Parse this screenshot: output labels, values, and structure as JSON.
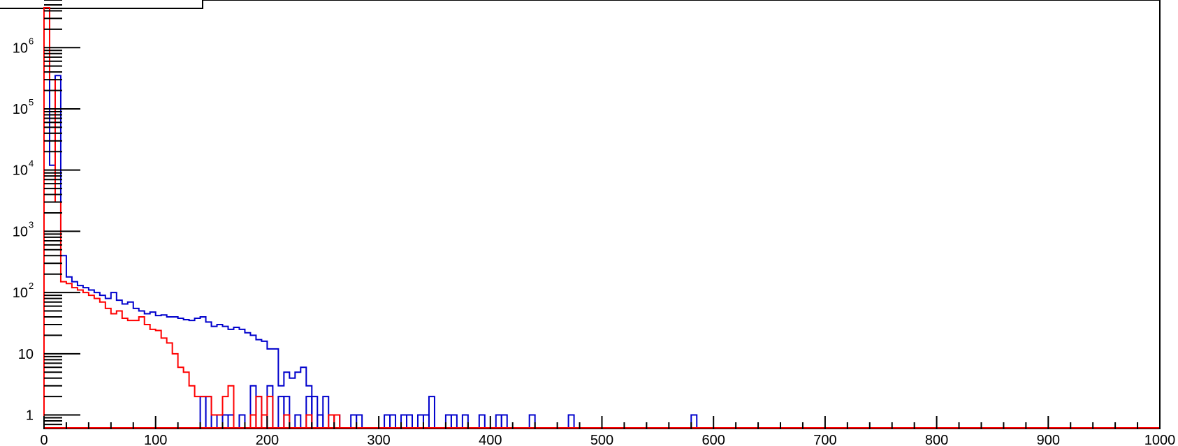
{
  "chart_data": {
    "type": "line",
    "title": "",
    "xlabel": "",
    "ylabel": "",
    "xlim": [
      0,
      1000
    ],
    "ylim_log": [
      0.6,
      6000000
    ],
    "y_scale": "log",
    "grid": false,
    "legend": "top-left (box, partially visible, no text)",
    "x_tick_labels": [
      "0",
      "100",
      "200",
      "300",
      "400",
      "500",
      "600",
      "700",
      "800",
      "900",
      "1000"
    ],
    "x_ticks": [
      0,
      100,
      200,
      300,
      400,
      500,
      600,
      700,
      800,
      900,
      1000
    ],
    "y_tick_labels": [
      {
        "value": 1,
        "base": "1",
        "exp": ""
      },
      {
        "value": 10,
        "base": "10",
        "exp": ""
      },
      {
        "value": 100,
        "base": "10",
        "exp": "2"
      },
      {
        "value": 1000,
        "base": "10",
        "exp": "3"
      },
      {
        "value": 10000,
        "base": "10",
        "exp": "4"
      },
      {
        "value": 100000,
        "base": "10",
        "exp": "5"
      },
      {
        "value": 1000000,
        "base": "10",
        "exp": "6"
      }
    ],
    "bin_width": 5,
    "series": [
      {
        "color": "#0000cc",
        "values": [
          4000000,
          12000,
          350000,
          3000,
          400,
          180,
          150,
          120,
          110,
          100,
          100,
          90,
          100,
          80,
          100,
          70,
          60,
          70,
          60,
          50,
          50,
          45,
          40,
          45,
          40,
          40,
          35,
          35,
          40,
          30,
          30,
          28,
          30,
          25,
          25,
          28,
          25,
          22,
          18,
          17,
          16,
          12,
          12,
          6,
          3,
          4,
          3,
          4,
          3,
          0,
          1,
          0,
          0,
          0,
          0,
          0,
          0,
          0,
          0,
          0,
          0,
          0,
          0,
          0,
          0,
          0,
          0,
          0,
          0,
          0,
          0,
          0,
          0,
          0,
          0,
          0,
          0,
          0,
          0,
          0,
          0,
          0,
          0,
          0,
          0,
          0,
          0,
          0,
          0,
          0,
          0,
          0,
          0,
          0,
          0,
          0,
          0,
          0,
          0,
          0,
          0,
          0,
          0,
          0,
          0,
          0,
          0,
          0,
          0,
          0,
          0,
          0,
          0,
          0,
          0,
          0,
          0,
          0,
          0,
          0,
          0,
          0,
          0,
          0,
          0,
          0,
          0,
          0,
          0,
          0,
          0,
          0,
          0,
          0,
          0,
          0,
          0,
          0,
          0,
          0,
          0,
          0,
          0,
          0,
          0,
          0,
          0,
          0,
          0,
          0,
          0,
          0,
          0,
          0,
          0,
          0,
          0,
          0,
          0,
          0,
          0,
          0,
          0,
          0,
          0,
          0,
          0,
          0,
          0,
          0,
          0,
          0,
          0,
          0,
          0,
          0,
          0,
          0,
          0,
          0,
          0,
          0,
          0,
          0,
          0,
          0,
          0,
          0,
          0,
          0,
          0,
          0,
          0,
          0,
          0,
          0,
          0,
          0,
          0,
          0
        ],
        "overrides": [
          {
            "x": 0,
            "y": 4000000
          },
          {
            "x": 5,
            "y": 12000
          },
          {
            "x": 10,
            "y": 350000
          },
          {
            "x": 15,
            "y": 400
          },
          {
            "x": 20,
            "y": 180
          },
          {
            "x": 25,
            "y": 150
          },
          {
            "x": 30,
            "y": 130
          },
          {
            "x": 35,
            "y": 120
          },
          {
            "x": 40,
            "y": 110
          },
          {
            "x": 45,
            "y": 100
          },
          {
            "x": 50,
            "y": 90
          },
          {
            "x": 55,
            "y": 80
          },
          {
            "x": 60,
            "y": 100
          },
          {
            "x": 65,
            "y": 75
          },
          {
            "x": 70,
            "y": 65
          },
          {
            "x": 75,
            "y": 70
          },
          {
            "x": 80,
            "y": 55
          },
          {
            "x": 85,
            "y": 50
          },
          {
            "x": 90,
            "y": 45
          },
          {
            "x": 95,
            "y": 48
          },
          {
            "x": 100,
            "y": 42
          },
          {
            "x": 105,
            "y": 43
          },
          {
            "x": 110,
            "y": 40
          },
          {
            "x": 115,
            "y": 40
          },
          {
            "x": 120,
            "y": 38
          },
          {
            "x": 125,
            "y": 36
          },
          {
            "x": 130,
            "y": 35
          },
          {
            "x": 135,
            "y": 38
          },
          {
            "x": 140,
            "y": 40
          },
          {
            "x": 145,
            "y": 33
          },
          {
            "x": 150,
            "y": 28
          },
          {
            "x": 155,
            "y": 30
          },
          {
            "x": 160,
            "y": 28
          },
          {
            "x": 165,
            "y": 25
          },
          {
            "x": 170,
            "y": 27
          },
          {
            "x": 175,
            "y": 25
          },
          {
            "x": 180,
            "y": 22
          },
          {
            "x": 185,
            "y": 20
          },
          {
            "x": 190,
            "y": 17
          },
          {
            "x": 195,
            "y": 16
          },
          {
            "x": 200,
            "y": 12
          },
          {
            "x": 205,
            "y": 12
          },
          {
            "x": 210,
            "y": 3
          },
          {
            "x": 215,
            "y": 5
          },
          {
            "x": 220,
            "y": 4
          },
          {
            "x": 225,
            "y": 5
          },
          {
            "x": 230,
            "y": 6
          },
          {
            "x": 235,
            "y": 3
          }
        ],
        "sparse": [
          {
            "x": 100,
            "y": 2
          },
          {
            "x": 105,
            "y": 1
          },
          {
            "x": 110,
            "y": 2
          },
          {
            "x": 115,
            "y": 1
          },
          {
            "x": 120,
            "y": 0
          },
          {
            "x": 125,
            "y": 0
          },
          {
            "x": 135,
            "y": 1
          },
          {
            "x": 145,
            "y": 2
          },
          {
            "x": 150,
            "y": 2
          },
          {
            "x": 160,
            "y": 1
          },
          {
            "x": 165,
            "y": 1
          },
          {
            "x": 170,
            "y": 1
          },
          {
            "x": 175,
            "y": 0
          },
          {
            "x": 180,
            "y": 1
          },
          {
            "x": 185,
            "y": 3
          },
          {
            "x": 190,
            "y": 2
          },
          {
            "x": 195,
            "y": 1
          },
          {
            "x": 200,
            "y": 3
          },
          {
            "x": 205,
            "y": 1
          },
          {
            "x": 210,
            "y": 2
          },
          {
            "x": 215,
            "y": 2
          },
          {
            "x": 225,
            "y": 1
          },
          {
            "x": 230,
            "y": 1
          },
          {
            "x": 235,
            "y": 2
          },
          {
            "x": 240,
            "y": 1
          },
          {
            "x": 245,
            "y": 2
          },
          {
            "x": 250,
            "y": 1
          },
          {
            "x": 255,
            "y": 1
          },
          {
            "x": 260,
            "y": 2
          },
          {
            "x": 265,
            "y": 1
          },
          {
            "x": 270,
            "y": 1
          },
          {
            "x": 275,
            "y": 1
          },
          {
            "x": 280,
            "y": 2
          },
          {
            "x": 290,
            "y": 2
          },
          {
            "x": 295,
            "y": 1
          }
        ]
      },
      {
        "color": "#ff0000",
        "values": []
      }
    ]
  }
}
